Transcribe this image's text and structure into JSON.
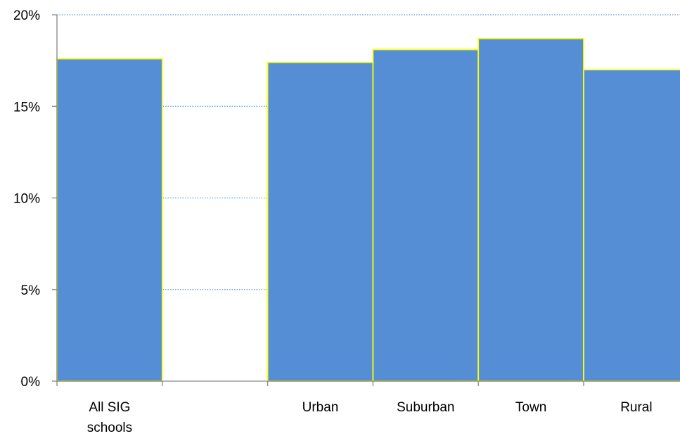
{
  "chart_data": {
    "type": "bar",
    "categories": [
      "All SIG schools",
      "",
      "Urban",
      "Suburban",
      "Town",
      "Rural"
    ],
    "category_label_lines": [
      [
        "All SIG",
        "schools"
      ],
      [],
      [
        "Urban"
      ],
      [
        "Suburban"
      ],
      [
        "Town"
      ],
      [
        "Rural"
      ]
    ],
    "values": [
      17.6,
      null,
      17.4,
      18.1,
      18.7,
      17.0
    ],
    "ylim": [
      0,
      20
    ],
    "yticks": [
      0,
      5,
      10,
      15,
      20
    ],
    "ytick_labels": [
      "0%",
      "5%",
      "10%",
      "15%",
      "20%"
    ],
    "title": "",
    "xlabel": "",
    "ylabel": "",
    "grid": "horizontal dotted",
    "legend": "none",
    "colors": {
      "bar_fill": "#558ed5",
      "bar_edge": "#ffff00",
      "grid": "#5b9bd5",
      "axis": "#868686"
    }
  }
}
